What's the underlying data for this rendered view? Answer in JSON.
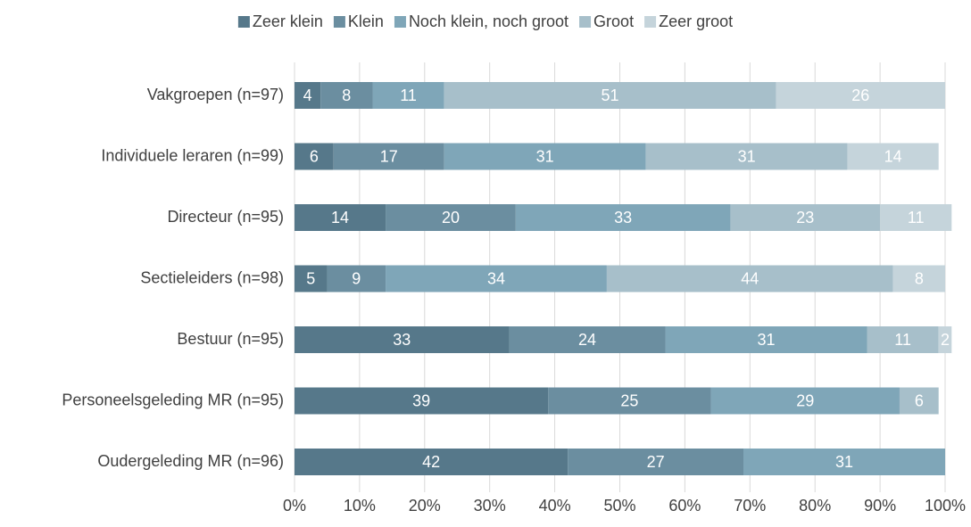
{
  "chart_data": {
    "type": "stacked_bar_horizontal",
    "categories": [
      "Vakgroepen (n=97)",
      "Individuele leraren (n=99)",
      "Directeur (n=95)",
      "Sectieleiders (n=98)",
      "Bestuur (n=95)",
      "Personeelsgeleding MR (n=95)",
      "Oudergeleding MR (n=96)"
    ],
    "series": [
      {
        "name": "Zeer klein",
        "color": "#56788a",
        "values": [
          4,
          6,
          14,
          5,
          33,
          39,
          42
        ]
      },
      {
        "name": "Klein",
        "color": "#6b8ea0",
        "values": [
          8,
          17,
          20,
          9,
          24,
          25,
          27
        ]
      },
      {
        "name": "Noch klein, noch groot",
        "color": "#7fa6b8",
        "values": [
          11,
          31,
          33,
          34,
          31,
          29,
          31
        ]
      },
      {
        "name": "Groot",
        "color": "#a7bfca",
        "values": [
          51,
          31,
          23,
          44,
          11,
          6,
          null
        ]
      },
      {
        "name": "Zeer groot",
        "color": "#c5d4db",
        "values": [
          26,
          14,
          11,
          8,
          2,
          null,
          null
        ]
      }
    ],
    "xlim": [
      0,
      100
    ],
    "xticks": [
      {
        "value": 0,
        "label": "0%"
      },
      {
        "value": 10,
        "label": "10%"
      },
      {
        "value": 20,
        "label": "20%"
      },
      {
        "value": 30,
        "label": "30%"
      },
      {
        "value": 40,
        "label": "40%"
      },
      {
        "value": 50,
        "label": "50%"
      },
      {
        "value": 60,
        "label": "60%"
      },
      {
        "value": 70,
        "label": "70%"
      },
      {
        "value": 80,
        "label": "80%"
      },
      {
        "value": 90,
        "label": "90%"
      },
      {
        "value": 100,
        "label": "100%"
      }
    ],
    "grid": true,
    "legend": "top"
  }
}
